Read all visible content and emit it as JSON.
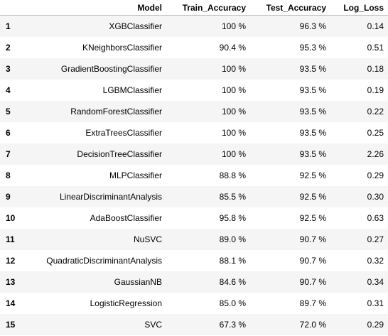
{
  "table": {
    "columns": [
      "",
      "Model",
      "Train_Accuracy",
      "Test_Accuracy",
      "Log_Loss"
    ],
    "rows": [
      {
        "index": "1",
        "model": "XGBClassifier",
        "train_accuracy": "100 %",
        "test_accuracy": "96.3 %",
        "log_loss": "0.14"
      },
      {
        "index": "2",
        "model": "KNeighborsClassifier",
        "train_accuracy": "90.4 %",
        "test_accuracy": "95.3 %",
        "log_loss": "0.51"
      },
      {
        "index": "3",
        "model": "GradientBoostingClassifier",
        "train_accuracy": "100 %",
        "test_accuracy": "93.5 %",
        "log_loss": "0.18"
      },
      {
        "index": "4",
        "model": "LGBMClassifier",
        "train_accuracy": "100 %",
        "test_accuracy": "93.5 %",
        "log_loss": "0.19"
      },
      {
        "index": "5",
        "model": "RandomForestClassifier",
        "train_accuracy": "100 %",
        "test_accuracy": "93.5 %",
        "log_loss": "0.22"
      },
      {
        "index": "6",
        "model": "ExtraTreesClassifier",
        "train_accuracy": "100 %",
        "test_accuracy": "93.5 %",
        "log_loss": "0.25"
      },
      {
        "index": "7",
        "model": "DecisionTreeClassifier",
        "train_accuracy": "100 %",
        "test_accuracy": "93.5 %",
        "log_loss": "2.26"
      },
      {
        "index": "8",
        "model": "MLPClassifier",
        "train_accuracy": "88.8 %",
        "test_accuracy": "92.5 %",
        "log_loss": "0.29"
      },
      {
        "index": "9",
        "model": "LinearDiscriminantAnalysis",
        "train_accuracy": "85.5 %",
        "test_accuracy": "92.5 %",
        "log_loss": "0.30"
      },
      {
        "index": "10",
        "model": "AdaBoostClassifier",
        "train_accuracy": "95.8 %",
        "test_accuracy": "92.5 %",
        "log_loss": "0.63"
      },
      {
        "index": "11",
        "model": "NuSVC",
        "train_accuracy": "89.0 %",
        "test_accuracy": "90.7 %",
        "log_loss": "0.27"
      },
      {
        "index": "12",
        "model": "QuadraticDiscriminantAnalysis",
        "train_accuracy": "88.1 %",
        "test_accuracy": "90.7 %",
        "log_loss": "0.32"
      },
      {
        "index": "13",
        "model": "GaussianNB",
        "train_accuracy": "84.6 %",
        "test_accuracy": "90.7 %",
        "log_loss": "0.34"
      },
      {
        "index": "14",
        "model": "LogisticRegression",
        "train_accuracy": "85.0 %",
        "test_accuracy": "89.7 %",
        "log_loss": "0.31"
      },
      {
        "index": "15",
        "model": "SVC",
        "train_accuracy": "67.3 %",
        "test_accuracy": "72.0 %",
        "log_loss": "0.29"
      }
    ]
  },
  "colors": {
    "stripe": "#f5f5f5",
    "background": "#ffffff",
    "header_border": "#bdbdbd"
  }
}
